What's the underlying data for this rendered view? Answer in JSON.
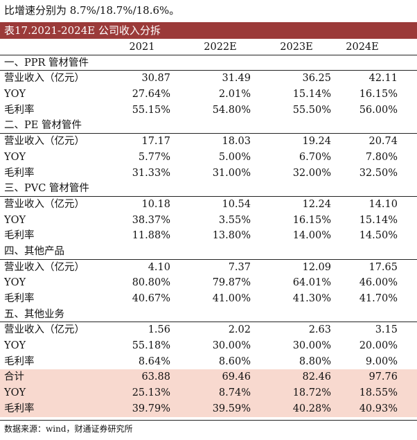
{
  "intro_text": "比增速分别为 8.7%/18.7%/18.6%。",
  "table": {
    "title": "表17.2021-2024E 公司收入分拆",
    "columns": [
      "2021",
      "2022E",
      "2023E",
      "2024E"
    ],
    "sections": [
      {
        "name": "一、PPR 管材管件",
        "rows": [
          {
            "label": "营业收入（亿元）",
            "values": [
              "30.87",
              "31.49",
              "36.25",
              "42.11"
            ]
          },
          {
            "label": "YOY",
            "values": [
              "27.64%",
              "2.01%",
              "15.14%",
              "16.15%"
            ]
          },
          {
            "label": "毛利率",
            "values": [
              "55.15%",
              "54.80%",
              "55.50%",
              "56.00%"
            ]
          }
        ]
      },
      {
        "name": "二、PE 管材管件",
        "rows": [
          {
            "label": "营业收入（亿元）",
            "values": [
              "17.17",
              "18.03",
              "19.24",
              "20.74"
            ]
          },
          {
            "label": "YOY",
            "values": [
              "5.77%",
              "5.00%",
              "6.70%",
              "7.80%"
            ]
          },
          {
            "label": "毛利率",
            "values": [
              "31.33%",
              "31.00%",
              "32.00%",
              "32.50%"
            ]
          }
        ]
      },
      {
        "name": "三、PVC 管材管件",
        "rows": [
          {
            "label": "营业收入（亿元）",
            "values": [
              "10.18",
              "10.54",
              "12.24",
              "14.10"
            ]
          },
          {
            "label": "YOY",
            "values": [
              "38.37%",
              "3.55%",
              "16.15%",
              "15.14%"
            ]
          },
          {
            "label": "毛利率",
            "values": [
              "11.88%",
              "13.80%",
              "14.00%",
              "14.50%"
            ]
          }
        ]
      },
      {
        "name": "四、其他产品",
        "rows": [
          {
            "label": "营业收入（亿元）",
            "values": [
              "4.10",
              "7.37",
              "12.09",
              "17.65"
            ]
          },
          {
            "label": "YOY",
            "values": [
              "80.80%",
              "79.87%",
              "64.01%",
              "46.00%"
            ]
          },
          {
            "label": "毛利率",
            "values": [
              "40.67%",
              "41.00%",
              "41.30%",
              "41.70%"
            ]
          }
        ]
      },
      {
        "name": "五、其他业务",
        "rows": [
          {
            "label": "营业收入（亿元）",
            "values": [
              "1.56",
              "2.02",
              "2.63",
              "3.15"
            ]
          },
          {
            "label": "YOY",
            "values": [
              "55.18%",
              "30.00%",
              "30.00%",
              "20.00%"
            ]
          },
          {
            "label": "毛利率",
            "values": [
              "8.64%",
              "8.60%",
              "8.80%",
              "9.00%"
            ]
          }
        ]
      }
    ],
    "totals": [
      {
        "label": "合计",
        "values": [
          "63.88",
          "69.46",
          "82.46",
          "97.76"
        ]
      },
      {
        "label": "YOY",
        "values": [
          "25.13%",
          "8.74%",
          "18.72%",
          "18.55%"
        ]
      },
      {
        "label": "毛利率",
        "values": [
          "39.79%",
          "39.59%",
          "40.28%",
          "40.93%"
        ]
      }
    ],
    "highlight_color": "#f8d9cf",
    "title_bar_color": "#9b3a39"
  },
  "source_note": "数据来源：wind，财通证券研究所"
}
